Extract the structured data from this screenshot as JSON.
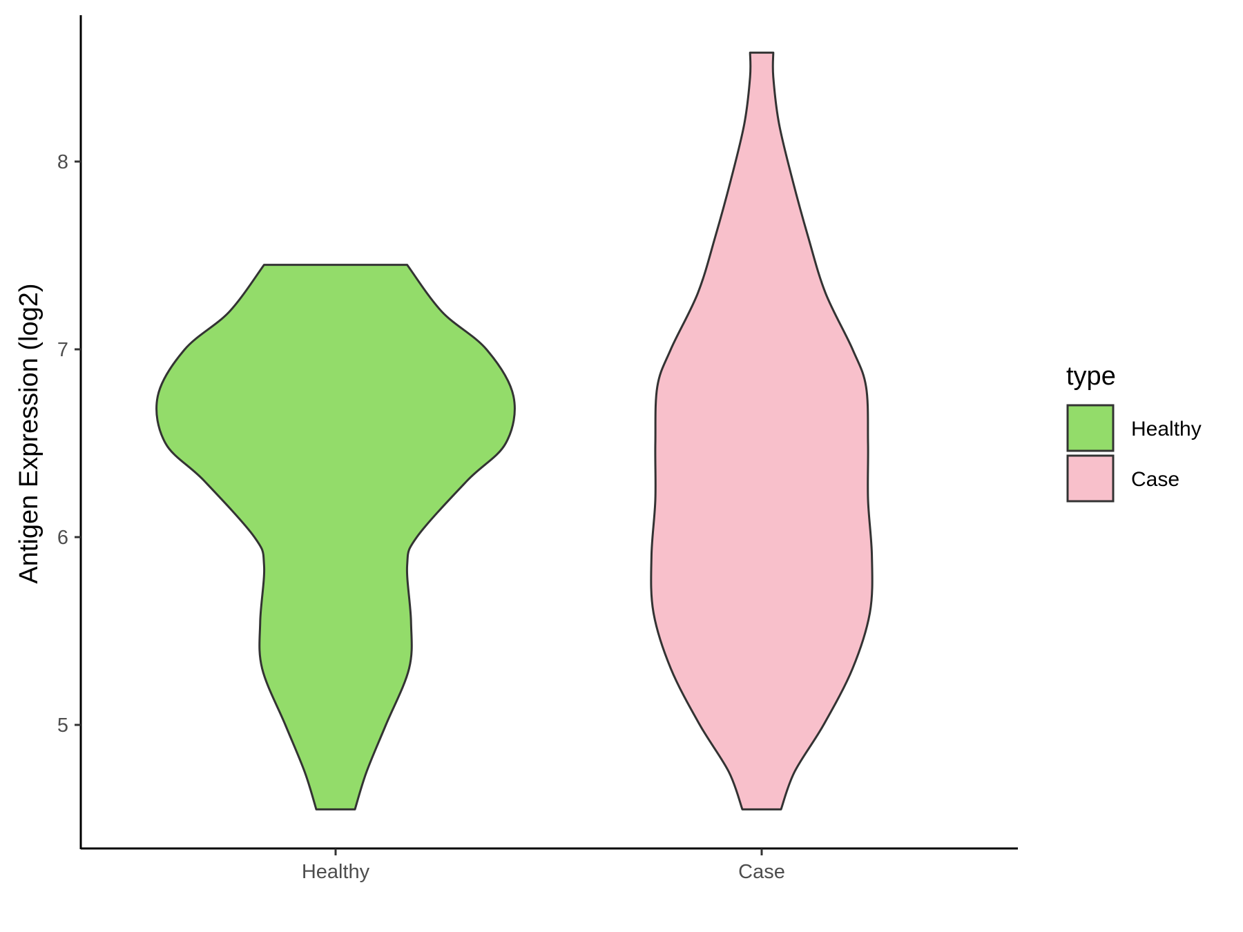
{
  "chart_data": {
    "type": "violin",
    "title": "",
    "xlabel": "",
    "ylabel": "Antigen Expression (log2)",
    "ylim": [
      4.4,
      8.8
    ],
    "yticks": [
      5,
      6,
      7,
      8
    ],
    "categories": [
      "Healthy",
      "Case"
    ],
    "grid": false,
    "legend": {
      "title": "type",
      "position": "right",
      "entries": [
        {
          "label": "Healthy",
          "color": "#93DC6A"
        },
        {
          "label": "Case",
          "color": "#F8C0CB"
        }
      ]
    },
    "series": [
      {
        "category": "Healthy",
        "color": "#93DC6A",
        "min": 4.55,
        "max": 7.45,
        "density_profile": [
          [
            4.55,
            0.1
          ],
          [
            4.75,
            0.16
          ],
          [
            5.0,
            0.26
          ],
          [
            5.3,
            0.38
          ],
          [
            5.55,
            0.39
          ],
          [
            5.85,
            0.37
          ],
          [
            6.0,
            0.42
          ],
          [
            6.3,
            0.68
          ],
          [
            6.5,
            0.88
          ],
          [
            6.75,
            0.92
          ],
          [
            7.0,
            0.78
          ],
          [
            7.2,
            0.55
          ],
          [
            7.45,
            0.37
          ]
        ]
      },
      {
        "category": "Case",
        "color": "#F8C0CB",
        "min": 4.55,
        "max": 8.58,
        "density_profile": [
          [
            4.55,
            0.1
          ],
          [
            4.75,
            0.17
          ],
          [
            5.0,
            0.32
          ],
          [
            5.3,
            0.47
          ],
          [
            5.6,
            0.56
          ],
          [
            5.9,
            0.57
          ],
          [
            6.2,
            0.55
          ],
          [
            6.5,
            0.55
          ],
          [
            6.8,
            0.54
          ],
          [
            7.0,
            0.47
          ],
          [
            7.3,
            0.33
          ],
          [
            7.6,
            0.24
          ],
          [
            7.9,
            0.16
          ],
          [
            8.2,
            0.09
          ],
          [
            8.45,
            0.06
          ],
          [
            8.58,
            0.06
          ]
        ]
      }
    ]
  }
}
